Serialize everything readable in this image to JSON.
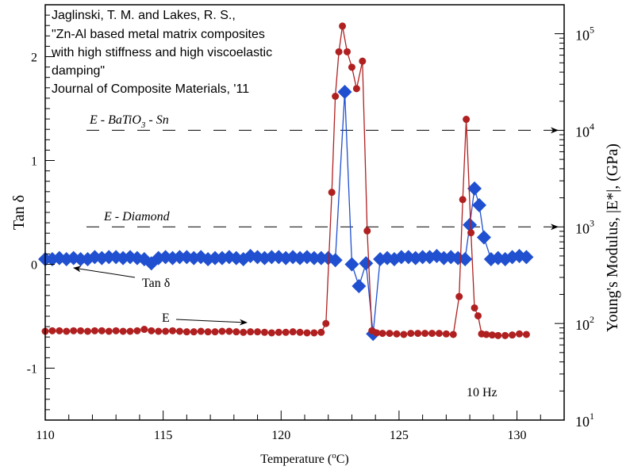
{
  "chart_data": {
    "type": "line",
    "title": "",
    "xlabel": "Temperature (",
    "xlabel_sup": "o",
    "xlabel_end": "C)",
    "ylabel_left": "Tan δ",
    "ylabel_right": "Young's Modulus, |E*|, (GPa)",
    "xlim": [
      110,
      132
    ],
    "ylim_left": [
      -1.5,
      2.5
    ],
    "ylim_right_log10": [
      1,
      5.3
    ],
    "x_ticks": [
      "110",
      "115",
      "120",
      "125",
      "130"
    ],
    "x_tick_values": [
      110,
      115,
      120,
      125,
      130
    ],
    "y_left_ticks": [
      "-1",
      "0",
      "1",
      "2"
    ],
    "y_left_tick_values": [
      -1,
      0,
      1,
      2
    ],
    "y_right_ticks": [
      {
        "base": "10",
        "exp": "1",
        "value": 10
      },
      {
        "base": "10",
        "exp": "2",
        "value": 100
      },
      {
        "base": "10",
        "exp": "3",
        "value": 1000
      },
      {
        "base": "10",
        "exp": "4",
        "value": 10000
      },
      {
        "base": "10",
        "exp": "5",
        "value": 100000
      }
    ],
    "citation": [
      "Jaglinski, T. M. and Lakes, R. S.,",
      "\"Zn-Al based metal matrix composites",
      "with high stiffness and high viscoelastic",
      "damping\"",
      "Journal of Composite Materials, '11"
    ],
    "frequency_label": "10 Hz",
    "reference_lines": [
      {
        "label_main": "E - BaTiO",
        "label_sub": "3",
        "label_end": " - Sn",
        "value_gpa": 10000
      },
      {
        "label_main": "E - Diamond",
        "label_sub": "",
        "label_end": "",
        "value_gpa": 1000
      }
    ],
    "annotations": {
      "tan_label": "Tan δ",
      "e_label": "E"
    },
    "series": [
      {
        "name": "Tan δ",
        "axis": "left",
        "color": "#2050d0",
        "marker": "diamond",
        "x": [
          110.0,
          110.3,
          110.6,
          110.9,
          111.2,
          111.5,
          111.8,
          112.1,
          112.4,
          112.7,
          113.0,
          113.3,
          113.6,
          113.9,
          114.2,
          114.5,
          114.8,
          115.1,
          115.4,
          115.7,
          116.0,
          116.3,
          116.6,
          116.9,
          117.2,
          117.5,
          117.8,
          118.1,
          118.4,
          118.7,
          119.0,
          119.3,
          119.6,
          119.9,
          120.2,
          120.5,
          120.8,
          121.1,
          121.4,
          121.7,
          122.0,
          122.3,
          122.7,
          123.0,
          123.3,
          123.6,
          123.9,
          124.2,
          124.5,
          124.8,
          125.1,
          125.4,
          125.7,
          126.0,
          126.3,
          126.6,
          126.9,
          127.2,
          127.5,
          127.8,
          128.0,
          128.2,
          128.4,
          128.6,
          128.9,
          129.2,
          129.5,
          129.8,
          130.1,
          130.4
        ],
        "values": [
          0.05,
          0.05,
          0.06,
          0.05,
          0.06,
          0.05,
          0.05,
          0.07,
          0.06,
          0.07,
          0.07,
          0.06,
          0.07,
          0.06,
          0.05,
          0.01,
          0.06,
          0.07,
          0.06,
          0.07,
          0.07,
          0.06,
          0.07,
          0.05,
          0.06,
          0.06,
          0.07,
          0.06,
          0.05,
          0.08,
          0.07,
          0.06,
          0.07,
          0.07,
          0.06,
          0.07,
          0.06,
          0.07,
          0.06,
          0.06,
          0.06,
          0.04,
          1.66,
          0.0,
          -0.21,
          0.01,
          -0.67,
          0.05,
          0.06,
          0.05,
          0.07,
          0.07,
          0.06,
          0.07,
          0.07,
          0.08,
          0.06,
          0.07,
          0.06,
          0.05,
          0.38,
          0.73,
          0.57,
          0.26,
          0.05,
          0.06,
          0.05,
          0.07,
          0.08,
          0.07
        ]
      },
      {
        "name": "E",
        "axis": "right",
        "color": "#b02020",
        "marker": "circle",
        "x": [
          110.0,
          110.3,
          110.6,
          110.9,
          111.2,
          111.5,
          111.8,
          112.1,
          112.4,
          112.7,
          113.0,
          113.3,
          113.6,
          113.9,
          114.2,
          114.5,
          114.8,
          115.1,
          115.4,
          115.7,
          116.0,
          116.3,
          116.6,
          116.9,
          117.2,
          117.5,
          117.8,
          118.1,
          118.4,
          118.7,
          119.0,
          119.3,
          119.6,
          119.9,
          120.2,
          120.5,
          120.8,
          121.1,
          121.4,
          121.7,
          121.9,
          122.15,
          122.3,
          122.45,
          122.6,
          122.8,
          123.0,
          123.2,
          123.45,
          123.65,
          123.85,
          124.05,
          124.3,
          124.6,
          124.9,
          125.2,
          125.5,
          125.8,
          126.1,
          126.4,
          126.7,
          127.0,
          127.3,
          127.55,
          127.7,
          127.85,
          128.05,
          128.2,
          128.35,
          128.5,
          128.7,
          128.95,
          129.2,
          129.5,
          129.8,
          130.1,
          130.4
        ],
        "values": [
          83,
          84,
          84,
          83,
          84,
          84,
          83,
          84,
          84,
          83,
          84,
          83,
          83,
          84,
          87,
          84,
          83,
          83,
          84,
          83,
          82,
          82,
          83,
          82,
          82,
          83,
          83,
          82,
          81,
          82,
          82,
          81,
          80,
          81,
          81,
          82,
          81,
          80,
          80,
          81,
          100,
          2280,
          22500,
          65000,
          120000,
          65000,
          45000,
          27000,
          52000,
          910,
          84,
          80,
          79,
          79,
          78,
          77,
          79,
          79,
          79,
          79,
          79,
          78,
          77,
          190,
          1920,
          13000,
          870,
          145,
          120,
          78,
          77,
          76,
          75,
          75,
          76,
          78,
          77
        ]
      }
    ]
  }
}
